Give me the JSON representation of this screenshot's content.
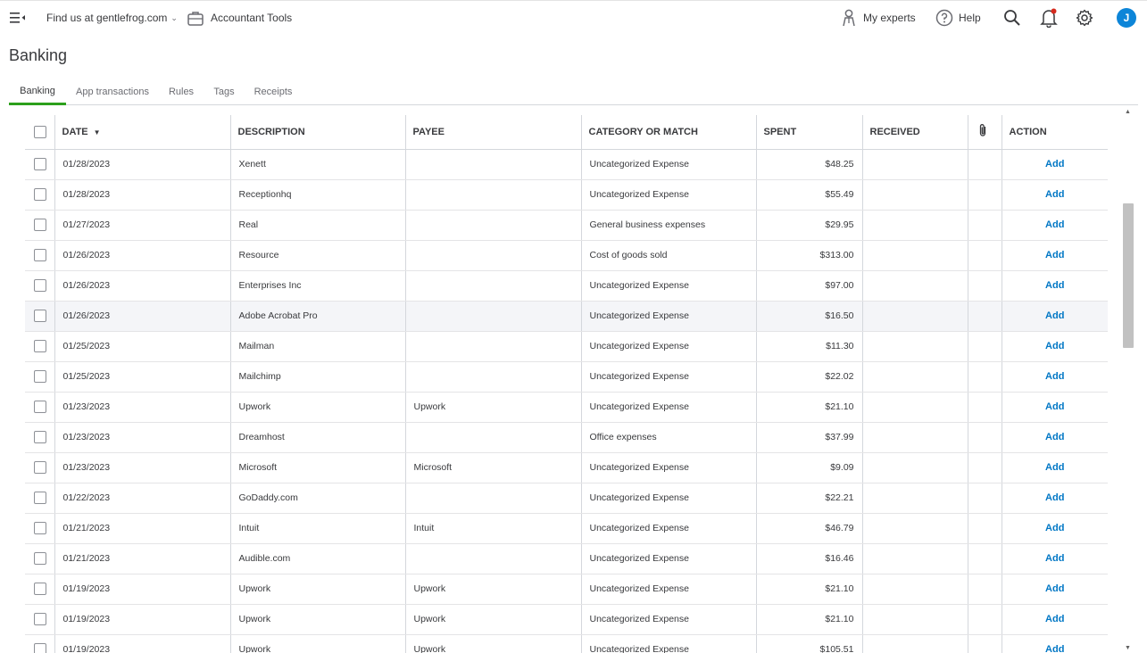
{
  "topbar": {
    "find_us": "Find us at gentlefrog.com",
    "accountant_tools": "Accountant Tools",
    "my_experts": "My experts",
    "help": "Help",
    "avatar_initial": "J"
  },
  "page": {
    "title": "Banking"
  },
  "tabs": [
    "Banking",
    "App transactions",
    "Rules",
    "Tags",
    "Receipts"
  ],
  "table": {
    "headers": {
      "date": "DATE",
      "description": "DESCRIPTION",
      "payee": "PAYEE",
      "category": "CATEGORY OR MATCH",
      "spent": "SPENT",
      "received": "RECEIVED",
      "action": "ACTION"
    },
    "action_label": "Add",
    "rows": [
      {
        "date": "01/28/2023",
        "description": "Xenett",
        "payee": "",
        "category": "Uncategorized Expense",
        "spent": "$48.25",
        "received": ""
      },
      {
        "date": "01/28/2023",
        "description": "Receptionhq",
        "payee": "",
        "category": "Uncategorized Expense",
        "spent": "$55.49",
        "received": ""
      },
      {
        "date": "01/27/2023",
        "description": "Real",
        "payee": "",
        "category": "General business expenses",
        "spent": "$29.95",
        "received": ""
      },
      {
        "date": "01/26/2023",
        "description": "Resource",
        "payee": "",
        "category": "Cost of goods sold",
        "spent": "$313.00",
        "received": ""
      },
      {
        "date": "01/26/2023",
        "description": "Enterprises Inc",
        "payee": "",
        "category": "Uncategorized Expense",
        "spent": "$97.00",
        "received": ""
      },
      {
        "date": "01/26/2023",
        "description": "Adobe Acrobat Pro",
        "payee": "",
        "category": "Uncategorized Expense",
        "spent": "$16.50",
        "received": ""
      },
      {
        "date": "01/25/2023",
        "description": "Mailman",
        "payee": "",
        "category": "Uncategorized Expense",
        "spent": "$11.30",
        "received": ""
      },
      {
        "date": "01/25/2023",
        "description": "Mailchimp",
        "payee": "",
        "category": "Uncategorized Expense",
        "spent": "$22.02",
        "received": ""
      },
      {
        "date": "01/23/2023",
        "description": "Upwork",
        "payee": "Upwork",
        "category": "Uncategorized Expense",
        "spent": "$21.10",
        "received": ""
      },
      {
        "date": "01/23/2023",
        "description": "Dreamhost",
        "payee": "",
        "category": "Office expenses",
        "spent": "$37.99",
        "received": ""
      },
      {
        "date": "01/23/2023",
        "description": "Microsoft",
        "payee": "Microsoft",
        "category": "Uncategorized Expense",
        "spent": "$9.09",
        "received": ""
      },
      {
        "date": "01/22/2023",
        "description": "GoDaddy.com",
        "payee": "",
        "category": "Uncategorized Expense",
        "spent": "$22.21",
        "received": ""
      },
      {
        "date": "01/21/2023",
        "description": "Intuit",
        "payee": "Intuit",
        "category": "Uncategorized Expense",
        "spent": "$46.79",
        "received": ""
      },
      {
        "date": "01/21/2023",
        "description": "Audible.com",
        "payee": "",
        "category": "Uncategorized Expense",
        "spent": "$16.46",
        "received": ""
      },
      {
        "date": "01/19/2023",
        "description": "Upwork",
        "payee": "Upwork",
        "category": "Uncategorized Expense",
        "spent": "$21.10",
        "received": ""
      },
      {
        "date": "01/19/2023",
        "description": "Upwork",
        "payee": "Upwork",
        "category": "Uncategorized Expense",
        "spent": "$21.10",
        "received": ""
      },
      {
        "date": "01/19/2023",
        "description": "Upwork",
        "payee": "Upwork",
        "category": "Uncategorized Expense",
        "spent": "$105.51",
        "received": ""
      }
    ]
  },
  "colors": {
    "accent_green": "#2ca01c",
    "link_blue": "#0077c5",
    "avatar_blue": "#0d85d8"
  }
}
